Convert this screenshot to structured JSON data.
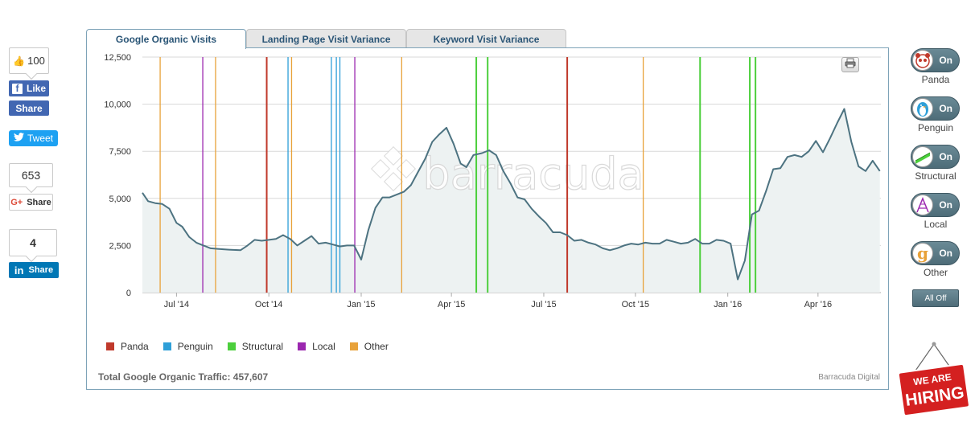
{
  "social": {
    "fb_count": "100",
    "fb_like": "Like",
    "fb_share": "Share",
    "tweet": "Tweet",
    "gplus_count": "653",
    "gplus_share": "Share",
    "li_count": "4",
    "li_share": "Share"
  },
  "tabs": [
    {
      "label": "Google Organic Visits",
      "active": true
    },
    {
      "label": "Landing Page Visit Variance",
      "active": false
    },
    {
      "label": "Keyword Visit Variance",
      "active": false
    }
  ],
  "watermark": "barracuda",
  "footer": {
    "total": "Total Google Organic Traffic: 457,607",
    "credit": "Barracuda Digital"
  },
  "legend": [
    {
      "name": "Panda",
      "color": "#c0392b"
    },
    {
      "name": "Penguin",
      "color": "#2e9fd8"
    },
    {
      "name": "Structural",
      "color": "#4ccf3c"
    },
    {
      "name": "Local",
      "color": "#9b27af"
    },
    {
      "name": "Other",
      "color": "#e8a23a"
    }
  ],
  "toggles": [
    {
      "label": "Panda",
      "state": "On",
      "icon": "panda-icon"
    },
    {
      "label": "Penguin",
      "state": "On",
      "icon": "penguin-icon"
    },
    {
      "label": "Structural",
      "state": "On",
      "icon": "structural-icon"
    },
    {
      "label": "Local",
      "state": "On",
      "icon": "local-icon"
    },
    {
      "label": "Other",
      "state": "On",
      "icon": "google-icon"
    }
  ],
  "all_off": "All Off",
  "hiring": {
    "line1": "WE ARE",
    "line2": "HIRING"
  },
  "chart_data": {
    "type": "area",
    "y_ticks": [
      "0",
      "2,500",
      "5,000",
      "7,500",
      "10,000",
      "12,500"
    ],
    "ylim": [
      0,
      12500
    ],
    "xlim": [
      0,
      100
    ],
    "x_ticks": [
      {
        "label": "Jul '14",
        "x": 4.8
      },
      {
        "label": "Oct '14",
        "x": 17.8
      },
      {
        "label": "Jan '15",
        "x": 30.8
      },
      {
        "label": "Apr '15",
        "x": 43.5
      },
      {
        "label": "Jul '15",
        "x": 56.5
      },
      {
        "label": "Oct '15",
        "x": 69.4
      },
      {
        "label": "Jan '16",
        "x": 82.4
      },
      {
        "label": "Apr '16",
        "x": 95.1
      }
    ],
    "series": [
      {
        "values": [
          [
            0,
            5300
          ],
          [
            0.8,
            4850
          ],
          [
            1.8,
            4750
          ],
          [
            2.8,
            4700
          ],
          [
            3.8,
            4450
          ],
          [
            4.8,
            3700
          ],
          [
            5.6,
            3500
          ],
          [
            6.6,
            2950
          ],
          [
            7.6,
            2650
          ],
          [
            8.6,
            2500
          ],
          [
            9.6,
            2350
          ],
          [
            10.6,
            2320
          ],
          [
            12.2,
            2280
          ],
          [
            13.8,
            2250
          ],
          [
            14.8,
            2500
          ],
          [
            15.8,
            2800
          ],
          [
            16.8,
            2750
          ],
          [
            17.8,
            2800
          ],
          [
            18.8,
            2850
          ],
          [
            19.8,
            3050
          ],
          [
            20.8,
            2850
          ],
          [
            21.8,
            2500
          ],
          [
            22.8,
            2750
          ],
          [
            23.8,
            3000
          ],
          [
            24.8,
            2600
          ],
          [
            25.8,
            2650
          ],
          [
            26.8,
            2550
          ],
          [
            27.8,
            2450
          ],
          [
            28.8,
            2500
          ],
          [
            29.8,
            2500
          ],
          [
            30.8,
            1750
          ],
          [
            31.8,
            3300
          ],
          [
            32.8,
            4500
          ],
          [
            33.8,
            5050
          ],
          [
            34.8,
            5050
          ],
          [
            35.8,
            5200
          ],
          [
            36.8,
            5350
          ],
          [
            37.8,
            5700
          ],
          [
            38.8,
            6400
          ],
          [
            39.8,
            7100
          ],
          [
            40.8,
            8000
          ],
          [
            41.8,
            8400
          ],
          [
            42.8,
            8750
          ],
          [
            43.8,
            7900
          ],
          [
            44.8,
            6850
          ],
          [
            45.6,
            6650
          ],
          [
            46.6,
            7300
          ],
          [
            47.8,
            7400
          ],
          [
            48.8,
            7550
          ],
          [
            49.8,
            7300
          ],
          [
            50.8,
            6450
          ],
          [
            51.8,
            5800
          ],
          [
            52.8,
            5050
          ],
          [
            53.8,
            4950
          ],
          [
            54.8,
            4450
          ],
          [
            55.8,
            4050
          ],
          [
            56.8,
            3700
          ],
          [
            57.8,
            3200
          ],
          [
            58.8,
            3200
          ],
          [
            59.8,
            3050
          ],
          [
            60.8,
            2750
          ],
          [
            61.8,
            2800
          ],
          [
            62.8,
            2650
          ],
          [
            63.8,
            2550
          ],
          [
            64.8,
            2350
          ],
          [
            65.8,
            2250
          ],
          [
            66.8,
            2350
          ],
          [
            67.8,
            2500
          ],
          [
            68.8,
            2600
          ],
          [
            69.8,
            2550
          ],
          [
            70.8,
            2650
          ],
          [
            71.8,
            2600
          ],
          [
            72.8,
            2600
          ],
          [
            73.8,
            2800
          ],
          [
            74.8,
            2700
          ],
          [
            75.8,
            2600
          ],
          [
            76.8,
            2650
          ],
          [
            77.8,
            2850
          ],
          [
            78.8,
            2600
          ],
          [
            79.8,
            2600
          ],
          [
            80.8,
            2800
          ],
          [
            81.8,
            2750
          ],
          [
            82.8,
            2600
          ],
          [
            83.8,
            700
          ],
          [
            84.8,
            1700
          ],
          [
            85.8,
            4150
          ],
          [
            86.8,
            4350
          ],
          [
            87.8,
            5400
          ],
          [
            88.8,
            6550
          ],
          [
            89.8,
            6600
          ],
          [
            90.8,
            7200
          ],
          [
            91.8,
            7300
          ],
          [
            92.8,
            7200
          ],
          [
            93.8,
            7500
          ],
          [
            94.8,
            8050
          ],
          [
            95.8,
            7450
          ],
          [
            96.8,
            8200
          ],
          [
            97.8,
            9000
          ],
          [
            98.8,
            9750
          ],
          [
            99.8,
            8000
          ],
          [
            100.8,
            6700
          ],
          [
            101.8,
            6450
          ],
          [
            102.8,
            7000
          ],
          [
            103.8,
            6450
          ]
        ]
      }
    ],
    "events": [
      {
        "type": "Other",
        "x": 2.5
      },
      {
        "type": "Local",
        "x": 8.5
      },
      {
        "type": "Other",
        "x": 10.3
      },
      {
        "type": "Panda",
        "x": 17.5
      },
      {
        "type": "Penguin",
        "x": 20.5
      },
      {
        "type": "Other",
        "x": 21.0
      },
      {
        "type": "Penguin",
        "x": 26.6
      },
      {
        "type": "Penguin",
        "x": 27.3
      },
      {
        "type": "Penguin",
        "x": 27.8
      },
      {
        "type": "Local",
        "x": 29.9
      },
      {
        "type": "Other",
        "x": 36.5
      },
      {
        "type": "Structural",
        "x": 47.0
      },
      {
        "type": "Structural",
        "x": 48.6
      },
      {
        "type": "Panda",
        "x": 59.8
      },
      {
        "type": "Other",
        "x": 70.5
      },
      {
        "type": "Structural",
        "x": 78.5
      },
      {
        "type": "Structural",
        "x": 85.5
      },
      {
        "type": "Structural",
        "x": 86.3
      }
    ]
  }
}
